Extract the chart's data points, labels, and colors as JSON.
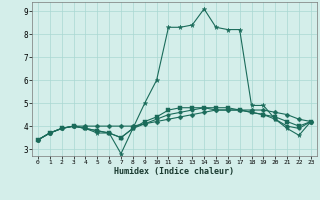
{
  "xlabel": "Humidex (Indice chaleur)",
  "ylabel": "",
  "xlim": [
    -0.5,
    23.5
  ],
  "ylim": [
    2.7,
    9.4
  ],
  "yticks": [
    3,
    4,
    5,
    6,
    7,
    8,
    9
  ],
  "xticks": [
    0,
    1,
    2,
    3,
    4,
    5,
    6,
    7,
    8,
    9,
    10,
    11,
    12,
    13,
    14,
    15,
    16,
    17,
    18,
    19,
    20,
    21,
    22,
    23
  ],
  "bg_color": "#d4eeea",
  "line_color": "#1a6b5a",
  "grid_color": "#aad8d2",
  "series": [
    [
      3.4,
      3.7,
      3.9,
      4.0,
      3.9,
      3.7,
      3.7,
      2.8,
      3.9,
      5.0,
      6.0,
      8.3,
      8.3,
      8.4,
      9.1,
      8.3,
      8.2,
      8.2,
      4.9,
      4.9,
      4.3,
      3.9,
      3.6,
      4.2
    ],
    [
      3.4,
      3.7,
      3.9,
      4.0,
      4.0,
      4.0,
      4.0,
      4.0,
      4.0,
      4.1,
      4.2,
      4.3,
      4.4,
      4.5,
      4.6,
      4.7,
      4.7,
      4.7,
      4.7,
      4.7,
      4.6,
      4.5,
      4.3,
      4.2
    ],
    [
      3.4,
      3.7,
      3.9,
      4.0,
      3.9,
      3.8,
      3.7,
      3.5,
      3.9,
      4.2,
      4.4,
      4.7,
      4.8,
      4.8,
      4.8,
      4.8,
      4.8,
      4.7,
      4.6,
      4.5,
      4.4,
      4.2,
      4.0,
      4.2
    ],
    [
      3.4,
      3.7,
      3.9,
      4.0,
      3.9,
      3.8,
      3.7,
      3.5,
      3.9,
      4.1,
      4.3,
      4.5,
      4.6,
      4.7,
      4.8,
      4.7,
      4.7,
      4.7,
      4.6,
      4.5,
      4.3,
      4.0,
      3.9,
      4.2
    ]
  ],
  "markers": [
    "*",
    "D",
    "s",
    "o"
  ],
  "markersizes": [
    3.5,
    2.5,
    2.5,
    2.5
  ]
}
